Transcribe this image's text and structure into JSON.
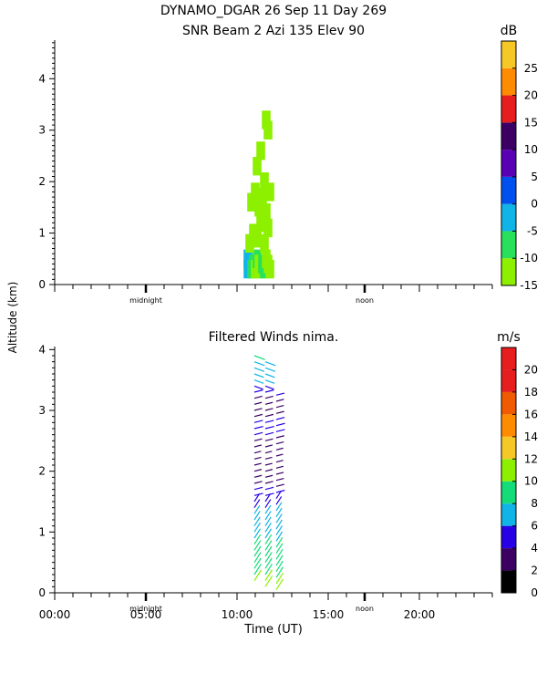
{
  "header": {
    "title_line1": "DYNAMO_DGAR  26 Sep 11 Day 269",
    "title_line2": "SNR Beam 2 Azi 135 Elev 90"
  },
  "shared": {
    "ylabel": "Altitude (km)",
    "xlabel": "Time (UT)",
    "time_ticks": [
      "00:00",
      "05:00",
      "10:00",
      "15:00",
      "20:00"
    ],
    "time_tick_values": [
      0,
      5,
      10,
      15,
      20
    ],
    "xlim": [
      0,
      24
    ],
    "markers": [
      {
        "label": "midnight",
        "t": 5
      },
      {
        "label": "noon",
        "t": 17
      }
    ]
  },
  "chart_data": [
    {
      "type": "heatmap",
      "title": "SNR Beam 2 Azi 135 Elev 90",
      "ylim": [
        0,
        4.75
      ],
      "ytick_labels": [
        "0",
        "1",
        "2",
        "3",
        "4"
      ],
      "ytick_values": [
        0,
        1,
        2,
        3,
        4
      ],
      "colorbar": {
        "unit": "dB",
        "min": -15,
        "max": 30,
        "labels": [
          "-15",
          "-10",
          "-5",
          "0",
          "5",
          "10",
          "15",
          "20",
          "25"
        ],
        "label_values": [
          -15,
          -10,
          -5,
          0,
          5,
          10,
          15,
          20,
          25
        ],
        "colors": [
          "#8cf000",
          "#28e05a",
          "#10b4e6",
          "#0050f0",
          "#5a00b4",
          "#3c0064",
          "#e61e1e",
          "#ff8c00",
          "#f5c828"
        ]
      },
      "cells": [
        {
          "t": 10.6,
          "alt": 0.3,
          "v": -2
        },
        {
          "t": 10.6,
          "alt": 0.5,
          "v": -3
        },
        {
          "t": 10.7,
          "alt": 0.4,
          "v": -4
        },
        {
          "t": 10.8,
          "alt": 0.3,
          "v": -6
        },
        {
          "t": 10.9,
          "alt": 0.4,
          "v": -9
        },
        {
          "t": 11.0,
          "alt": 0.3,
          "v": -11
        },
        {
          "t": 11.1,
          "alt": 0.5,
          "v": -8
        },
        {
          "t": 11.2,
          "alt": 0.4,
          "v": -12
        },
        {
          "t": 11.3,
          "alt": 0.3,
          "v": -11
        },
        {
          "t": 11.4,
          "alt": 0.4,
          "v": -7
        },
        {
          "t": 11.5,
          "alt": 0.3,
          "v": -10
        },
        {
          "t": 11.6,
          "alt": 0.5,
          "v": -12
        },
        {
          "t": 11.7,
          "alt": 0.4,
          "v": -13
        },
        {
          "t": 11.8,
          "alt": 0.3,
          "v": -12
        },
        {
          "t": 10.7,
          "alt": 0.8,
          "v": -12
        },
        {
          "t": 10.9,
          "alt": 1.0,
          "v": -13
        },
        {
          "t": 11.1,
          "alt": 0.9,
          "v": -12
        },
        {
          "t": 11.3,
          "alt": 1.2,
          "v": -13
        },
        {
          "t": 11.5,
          "alt": 0.8,
          "v": -11
        },
        {
          "t": 11.7,
          "alt": 1.1,
          "v": -13
        },
        {
          "t": 11.2,
          "alt": 1.5,
          "v": -13
        },
        {
          "t": 11.4,
          "alt": 1.7,
          "v": -13
        },
        {
          "t": 11.6,
          "alt": 1.4,
          "v": -14
        },
        {
          "t": 11.0,
          "alt": 1.8,
          "v": -13
        },
        {
          "t": 11.5,
          "alt": 2.0,
          "v": -14
        },
        {
          "t": 11.8,
          "alt": 1.8,
          "v": -13
        },
        {
          "t": 10.8,
          "alt": 1.6,
          "v": -14
        },
        {
          "t": 11.1,
          "alt": 2.3,
          "v": -14
        },
        {
          "t": 11.3,
          "alt": 2.6,
          "v": -14
        },
        {
          "t": 11.6,
          "alt": 3.2,
          "v": -13
        },
        {
          "t": 11.7,
          "alt": 3.0,
          "v": -14
        }
      ]
    },
    {
      "type": "scatter",
      "title": "Filtered Winds nima.",
      "ylim": [
        0,
        4.05
      ],
      "ytick_labels": [
        "0",
        "1",
        "2",
        "3",
        "4"
      ],
      "ytick_values": [
        0,
        1,
        2,
        3,
        4
      ],
      "colorbar": {
        "unit": "m/s",
        "min": 0,
        "max": 22,
        "labels": [
          "0",
          "2",
          "4",
          "6",
          "8",
          "10",
          "12",
          "14",
          "16",
          "18",
          "20"
        ],
        "label_values": [
          0,
          2,
          4,
          6,
          8,
          10,
          12,
          14,
          16,
          18,
          20
        ],
        "colors": [
          "#000000",
          "#3c0064",
          "#2800e6",
          "#10b4e6",
          "#14dc78",
          "#8cf000",
          "#f5c828",
          "#ff8c00",
          "#f05a00",
          "#e61e1e",
          "#e61e1e"
        ]
      },
      "columns": [
        {
          "t": 10.95,
          "alt_min": 0.2,
          "alt_max": 4.0
        },
        {
          "t": 11.55,
          "alt_min": 0.1,
          "alt_max": 3.9
        },
        {
          "t": 12.15,
          "alt_min": 0.05,
          "alt_max": 3.3
        }
      ],
      "speed_profile": [
        {
          "alt": 0.2,
          "speed": 10
        },
        {
          "alt": 0.8,
          "speed": 8
        },
        {
          "alt": 1.4,
          "speed": 6
        },
        {
          "alt": 1.9,
          "speed": 3
        },
        {
          "alt": 2.3,
          "speed": 2
        },
        {
          "alt": 2.7,
          "speed": 5
        },
        {
          "alt": 3.1,
          "speed": 3
        },
        {
          "alt": 3.5,
          "speed": 6
        },
        {
          "alt": 3.9,
          "speed": 8
        }
      ]
    }
  ]
}
